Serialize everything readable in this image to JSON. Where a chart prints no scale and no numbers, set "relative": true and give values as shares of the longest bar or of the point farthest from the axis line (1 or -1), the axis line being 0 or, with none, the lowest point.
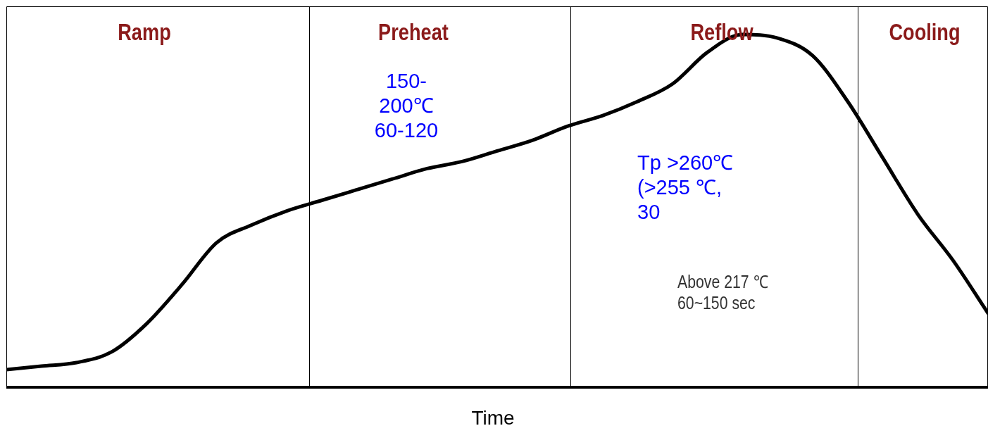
{
  "chart_data": {
    "type": "line",
    "relative": true,
    "xlabel": "Time",
    "color": "#000000",
    "marker": "none",
    "line_style": "solid",
    "legend": false,
    "tick_labels": false,
    "categories": [
      null,
      null,
      null,
      null,
      null,
      null,
      null,
      null,
      null,
      null,
      null,
      null,
      null,
      null,
      null,
      null,
      null,
      null,
      null,
      null,
      null,
      null,
      null,
      null,
      null,
      null,
      null,
      null,
      null
    ],
    "values": [
      0.05,
      0.06,
      0.07,
      0.1,
      0.18,
      0.29,
      0.41,
      0.46,
      0.5,
      0.53,
      0.56,
      0.59,
      0.62,
      0.64,
      0.67,
      0.7,
      0.74,
      0.77,
      0.81,
      0.86,
      0.95,
      1,
      0.99,
      0.94,
      0.81,
      0.65,
      0.49,
      0.36,
      0.21
    ],
    "annotations": [
      "Ramp",
      "Preheat",
      "Reflow",
      "Cooling",
      "150-\n200℃\n60-120",
      "Tp >260℃\n(>255 ℃,\n30",
      "Above 217 ℃\n60~150 sec"
    ]
  }
}
